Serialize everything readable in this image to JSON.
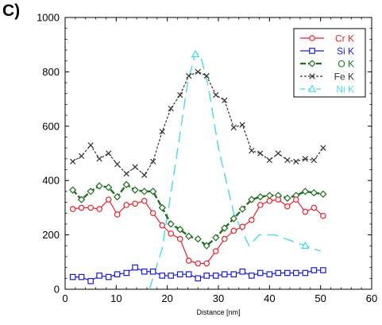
{
  "panel_label": "C)",
  "chart_data": {
    "type": "line",
    "title": "",
    "xlabel": "Distance [nm]",
    "ylabel": "",
    "xlim": [
      0,
      60
    ],
    "ylim": [
      0,
      1000
    ],
    "xticks": [
      0,
      10,
      20,
      30,
      40,
      50,
      60
    ],
    "yticks": [
      0,
      200,
      400,
      600,
      800,
      1000
    ],
    "grid": false,
    "legend_position": "top-right",
    "series": [
      {
        "name": "Cr K",
        "color": "#e8202a",
        "dash": "solid",
        "marker": "circle",
        "x": [
          1.5,
          3.2,
          5,
          6.7,
          8.5,
          10.2,
          12,
          13.7,
          15.5,
          17.2,
          19,
          20.7,
          22.5,
          24.2,
          26,
          27.7,
          29.5,
          31.2,
          33,
          34.7,
          36.5,
          38.2,
          40,
          41.7,
          43.5,
          45.2,
          47,
          48.7,
          50.5
        ],
        "y": [
          295,
          300,
          300,
          295,
          330,
          275,
          310,
          315,
          325,
          280,
          235,
          205,
          185,
          105,
          95,
          95,
          140,
          185,
          215,
          230,
          255,
          310,
          325,
          330,
          305,
          330,
          285,
          300,
          270
        ]
      },
      {
        "name": "Si K",
        "color": "#1a1adc",
        "dash": "solid",
        "marker": "square",
        "x": [
          1.5,
          3.2,
          5,
          6.7,
          8.5,
          10.2,
          12,
          13.7,
          15.5,
          17.2,
          19,
          20.7,
          22.5,
          24.2,
          26,
          27.7,
          29.5,
          31.2,
          33,
          34.7,
          36.5,
          38.2,
          40,
          41.7,
          43.5,
          45.2,
          47,
          48.7,
          50.5
        ],
        "y": [
          45,
          45,
          30,
          50,
          45,
          55,
          60,
          80,
          65,
          65,
          50,
          50,
          55,
          55,
          40,
          50,
          50,
          55,
          55,
          65,
          50,
          60,
          55,
          60,
          60,
          60,
          60,
          70,
          70
        ]
      },
      {
        "name": "O K",
        "color": "#1f6e1f",
        "dash": "dashed",
        "marker": "diamond",
        "x": [
          1.5,
          3.2,
          5,
          6.7,
          8.5,
          10.2,
          12,
          13.7,
          15.5,
          17.2,
          19,
          20.7,
          22.5,
          24.2,
          26,
          27.7,
          29.5,
          31.2,
          33,
          34.7,
          36.5,
          38.2,
          40,
          41.7,
          43.5,
          45.2,
          47,
          48.7,
          50.5
        ],
        "y": [
          365,
          330,
          360,
          380,
          375,
          340,
          385,
          365,
          360,
          360,
          300,
          240,
          220,
          195,
          185,
          160,
          190,
          225,
          260,
          295,
          330,
          340,
          345,
          345,
          335,
          345,
          360,
          355,
          350
        ]
      },
      {
        "name": "Fe K",
        "color": "#333333",
        "dash": "dotted",
        "marker": "x",
        "x": [
          1.5,
          3.2,
          5,
          6.7,
          8.5,
          10.2,
          12,
          13.7,
          15.5,
          17.2,
          19,
          20.7,
          22.5,
          24.2,
          26,
          27.7,
          29.5,
          31.2,
          33,
          34.7,
          36.5,
          38.2,
          40,
          41.7,
          43.5,
          45.2,
          47,
          48.7,
          50.5
        ],
        "y": [
          470,
          490,
          530,
          480,
          500,
          460,
          425,
          450,
          420,
          470,
          580,
          665,
          715,
          785,
          800,
          785,
          715,
          695,
          595,
          605,
          510,
          500,
          475,
          500,
          475,
          470,
          480,
          475,
          520
        ]
      },
      {
        "name": "Ni K",
        "color": "#48d8ec",
        "dash": "longdash",
        "marker": "triangle",
        "x": [
          16.5,
          19,
          21.5,
          24,
          25.5,
          26.5,
          28,
          30,
          33,
          36,
          38,
          41,
          44,
          47,
          50
        ],
        "y": [
          0,
          150,
          450,
          760,
          870,
          860,
          750,
          520,
          280,
          160,
          200,
          200,
          180,
          160,
          140
        ],
        "marker_x": [
          25.5,
          47
        ],
        "marker_y": [
          865,
          160
        ]
      }
    ]
  }
}
